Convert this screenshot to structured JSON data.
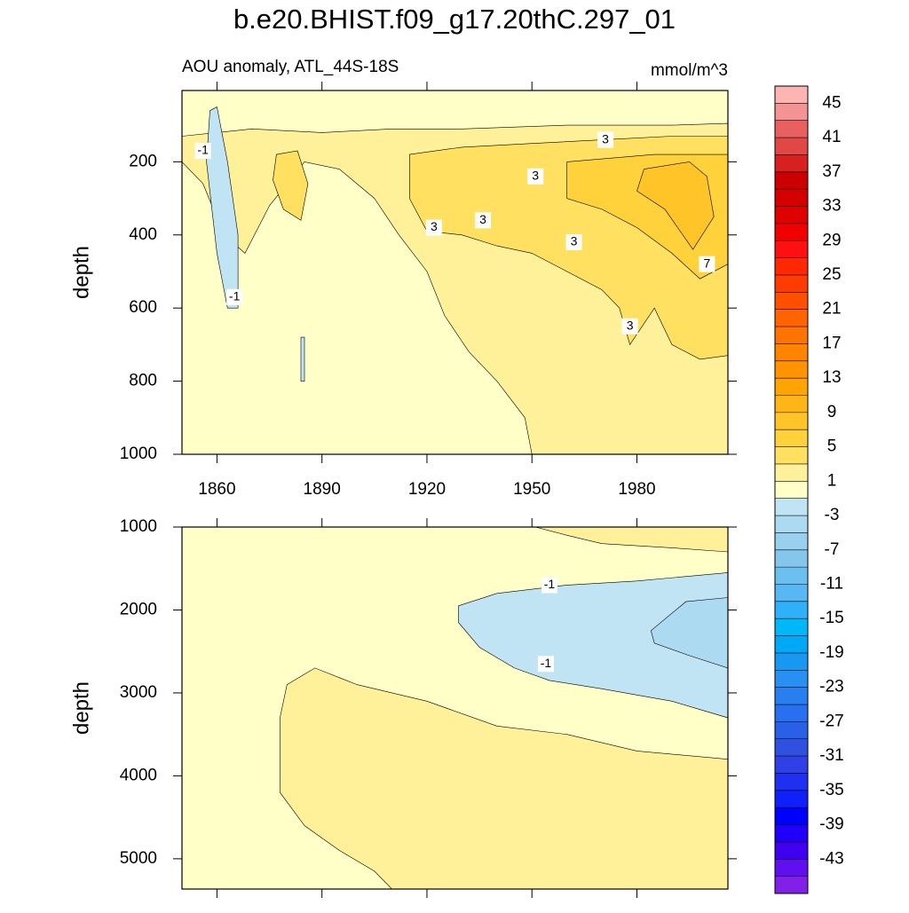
{
  "title": "b.e20.BHIST.f09_g17.20thC.297_01",
  "chart_data": [
    {
      "type": "contour",
      "subtitle_left": "AOU anomaly, ATL_44S-18S",
      "subtitle_right": "mmol/m^3",
      "ylabel": "depth",
      "xlim": [
        1850,
        2006
      ],
      "ylim": [
        5,
        1000
      ],
      "y_reversed": true,
      "show_xtick_labels": true,
      "xticks": [
        1860,
        1890,
        1920,
        1950,
        1980
      ],
      "yticks": [
        200,
        400,
        600,
        800,
        1000
      ],
      "background_value": -1,
      "regions": [
        {
          "value": 1,
          "points": [
            [
              1850,
              130
            ],
            [
              1870,
              110
            ],
            [
              1890,
              120
            ],
            [
              1910,
              110
            ],
            [
              1930,
              110
            ],
            [
              1960,
              100
            ],
            [
              1990,
              100
            ],
            [
              2006,
              95
            ],
            [
              2006,
              1000
            ],
            [
              1950,
              1000
            ],
            [
              1948,
              900
            ],
            [
              1940,
              800
            ],
            [
              1932,
              720
            ],
            [
              1925,
              620
            ],
            [
              1920,
              500
            ],
            [
              1912,
              400
            ],
            [
              1905,
              300
            ],
            [
              1895,
              220
            ],
            [
              1885,
              200
            ],
            [
              1875,
              320
            ],
            [
              1868,
              450
            ],
            [
              1862,
              400
            ],
            [
              1856,
              260
            ],
            [
              1850,
              200
            ]
          ]
        },
        {
          "value": 3,
          "points": [
            [
              1915,
              180
            ],
            [
              1930,
              160
            ],
            [
              1950,
              150
            ],
            [
              1970,
              140
            ],
            [
              1990,
              130
            ],
            [
              2006,
              130
            ],
            [
              2006,
              730
            ],
            [
              1998,
              740
            ],
            [
              1990,
              700
            ],
            [
              1985,
              600
            ],
            [
              1978,
              700
            ],
            [
              1975,
              600
            ],
            [
              1970,
              550
            ],
            [
              1960,
              500
            ],
            [
              1950,
              450
            ],
            [
              1940,
              430
            ],
            [
              1930,
              400
            ],
            [
              1920,
              390
            ],
            [
              1915,
              300
            ]
          ]
        },
        {
          "value": 3,
          "points": [
            [
              1877,
              180
            ],
            [
              1883,
              170
            ],
            [
              1886,
              260
            ],
            [
              1884,
              360
            ],
            [
              1879,
              330
            ],
            [
              1876,
              250
            ]
          ]
        },
        {
          "value": 5,
          "points": [
            [
              1960,
              200
            ],
            [
              1985,
              180
            ],
            [
              2006,
              180
            ],
            [
              2006,
              480
            ],
            [
              1998,
              520
            ],
            [
              1990,
              450
            ],
            [
              1980,
              380
            ],
            [
              1970,
              330
            ],
            [
              1960,
              300
            ]
          ]
        },
        {
          "value": 7,
          "points": [
            [
              1982,
              220
            ],
            [
              1995,
              200
            ],
            [
              2000,
              240
            ],
            [
              2002,
              350
            ],
            [
              1996,
              440
            ],
            [
              1988,
              330
            ],
            [
              1980,
              280
            ]
          ]
        },
        {
          "value": -3,
          "points": [
            [
              1858,
              60
            ],
            [
              1860,
              50
            ],
            [
              1863,
              200
            ],
            [
              1866,
              400
            ],
            [
              1866,
              600
            ],
            [
              1863,
              600
            ],
            [
              1860,
              450
            ],
            [
              1857,
              200
            ]
          ]
        },
        {
          "value": -3,
          "points": [
            [
              1884,
              680
            ],
            [
              1885,
              680
            ],
            [
              1885,
              800
            ],
            [
              1884,
              800
            ]
          ]
        }
      ],
      "contour_labels": [
        {
          "x": 1856,
          "y": 170,
          "value": -1
        },
        {
          "x": 1865,
          "y": 570,
          "value": -1
        },
        {
          "x": 1922,
          "y": 380,
          "value": 3
        },
        {
          "x": 1936,
          "y": 360,
          "value": 3
        },
        {
          "x": 1951,
          "y": 240,
          "value": 3
        },
        {
          "x": 1962,
          "y": 420,
          "value": 3
        },
        {
          "x": 1971,
          "y": 140,
          "value": 3
        },
        {
          "x": 1978,
          "y": 650,
          "value": 3
        },
        {
          "x": 2000,
          "y": 480,
          "value": 7
        }
      ]
    },
    {
      "type": "contour",
      "ylabel": "depth",
      "xlim": [
        1850,
        2006
      ],
      "ylim": [
        1000,
        5365
      ],
      "y_reversed": true,
      "show_xtick_labels": false,
      "xticks": [
        1860,
        1890,
        1920,
        1950,
        1980
      ],
      "yticks": [
        1000,
        2000,
        3000,
        4000,
        5000
      ],
      "background_value": -1,
      "regions": [
        {
          "value": 1,
          "points": [
            [
              1880,
              2900
            ],
            [
              1888,
              2700
            ],
            [
              1900,
              2900
            ],
            [
              1920,
              3100
            ],
            [
              1940,
              3400
            ],
            [
              1960,
              3500
            ],
            [
              1980,
              3700
            ],
            [
              2006,
              3800
            ],
            [
              2006,
              5365
            ],
            [
              1910,
              5365
            ],
            [
              1905,
              5150
            ],
            [
              1895,
              4900
            ],
            [
              1885,
              4600
            ],
            [
              1878,
              4200
            ],
            [
              1878,
              3300
            ]
          ]
        },
        {
          "value": 1,
          "points": [
            [
              1951,
              1000
            ],
            [
              2006,
              1000
            ],
            [
              2006,
              1300
            ],
            [
              1990,
              1250
            ],
            [
              1970,
              1200
            ],
            [
              1960,
              1100
            ]
          ]
        },
        {
          "value": -3,
          "points": [
            [
              1929,
              1950
            ],
            [
              1940,
              1800
            ],
            [
              1960,
              1700
            ],
            [
              1980,
              1650
            ],
            [
              2006,
              1550
            ],
            [
              2006,
              3300
            ],
            [
              1990,
              3100
            ],
            [
              1970,
              2950
            ],
            [
              1955,
              2850
            ],
            [
              1945,
              2700
            ],
            [
              1935,
              2450
            ],
            [
              1929,
              2150
            ]
          ]
        },
        {
          "value": -5,
          "points": [
            [
              1984,
              2250
            ],
            [
              1994,
              1900
            ],
            [
              2006,
              1850
            ],
            [
              2006,
              2700
            ],
            [
              1995,
              2550
            ],
            [
              1985,
              2400
            ]
          ]
        }
      ],
      "contour_labels": [
        {
          "x": 1955,
          "y": 1700,
          "value": -1
        },
        {
          "x": 1954,
          "y": 2650,
          "value": -1
        }
      ]
    }
  ],
  "colorbar": {
    "levels": [
      45,
      43,
      41,
      39,
      37,
      35,
      33,
      31,
      29,
      27,
      25,
      23,
      21,
      19,
      17,
      15,
      13,
      11,
      9,
      7,
      5,
      3,
      1,
      -1,
      -3,
      -5,
      -7,
      -9,
      -11,
      -13,
      -15,
      -17,
      -19,
      -21,
      -23,
      -25,
      -27,
      -29,
      -31,
      -33,
      -35,
      -37,
      -39,
      -41,
      -43,
      -45
    ],
    "ticks": [
      45,
      41,
      37,
      33,
      29,
      25,
      21,
      17,
      13,
      9,
      5,
      1,
      -3,
      -7,
      -11,
      -15,
      -19,
      -23,
      -27,
      -31,
      -35,
      -39,
      -43
    ],
    "colors": [
      "#ffb4b4",
      "#f39393",
      "#e86060",
      "#e04848",
      "#d82020",
      "#cc0000",
      "#d40000",
      "#e00000",
      "#f00000",
      "#ff1010",
      "#ff2800",
      "#ff3c00",
      "#ff5000",
      "#ff6400",
      "#ff7400",
      "#ff8400",
      "#ff9400",
      "#ffa400",
      "#ffb418",
      "#ffc428",
      "#ffd23c",
      "#ffe060",
      "#fff09a",
      "#ffffc8",
      "#c0e4f4",
      "#acdaf0",
      "#98d0ee",
      "#84c6ec",
      "#6cc0f0",
      "#58b8f4",
      "#30b0f8",
      "#00b8f8",
      "#00a8f8",
      "#1898f0",
      "#2890f0",
      "#2880f0",
      "#2870f0",
      "#2860e8",
      "#3050e0",
      "#3040e8",
      "#2030f0",
      "#1020f8",
      "#0000ff",
      "#2000f8",
      "#4000f0",
      "#6010f0",
      "#8020e8"
    ]
  }
}
